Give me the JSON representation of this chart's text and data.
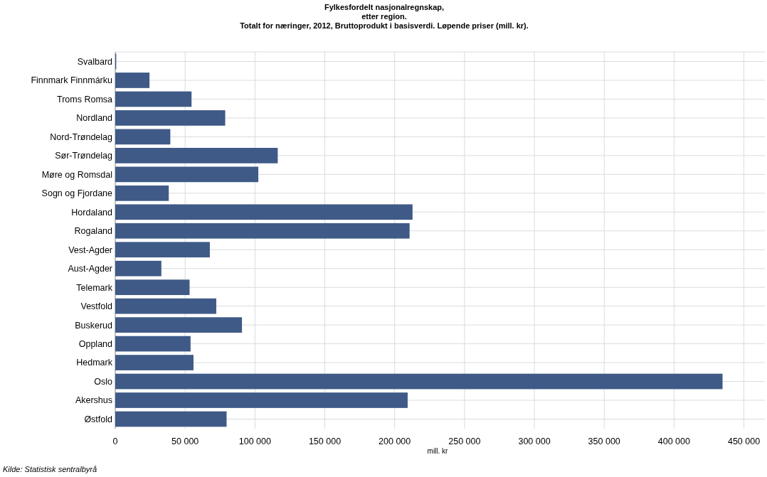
{
  "chart_data": {
    "type": "bar",
    "orientation": "horizontal",
    "title": "Fylkesfordelt nasjonalregnskap,\netter region.\nTotalt for næringer, 2012, Bruttoprodukt i basisverdi. Løpende priser (mill. kr).",
    "xlabel": "mill. kr",
    "categories": [
      "Svalbard",
      "Finnmark Finnmárku",
      "Troms Romsa",
      "Nordland",
      "Nord-Trøndelag",
      "Sør-Trøndelag",
      "Møre og Romsdal",
      "Sogn og Fjordane",
      "Hordaland",
      "Rogaland",
      "Vest-Agder",
      "Aust-Agder",
      "Telemark",
      "Vestfold",
      "Buskerud",
      "Oppland",
      "Hedmark",
      "Oslo",
      "Akershus",
      "Østfold"
    ],
    "values": [
      700,
      24500,
      54600,
      78700,
      39400,
      116300,
      102400,
      38300,
      212800,
      210700,
      67700,
      33000,
      53200,
      72300,
      90700,
      53900,
      56000,
      434700,
      209300,
      79700
    ],
    "color": "#3f5a87",
    "xlim": [
      0,
      465000
    ],
    "xticks": [
      0,
      {
        "value": 50000,
        "label": "50 000"
      },
      {
        "value": 100000,
        "label": "100 000"
      },
      {
        "value": 150000,
        "label": "150 000"
      },
      {
        "value": 200000,
        "label": "200 000"
      },
      {
        "value": 250000,
        "label": "250 000"
      },
      {
        "value": 300000,
        "label": "300 000"
      },
      {
        "value": 350000,
        "label": "350 000"
      },
      {
        "value": 400000,
        "label": "400 000"
      },
      {
        "value": 450000,
        "label": "450 000"
      }
    ],
    "grid": true,
    "annotations": [
      "Kilde: Statistisk sentralbyrå"
    ]
  }
}
